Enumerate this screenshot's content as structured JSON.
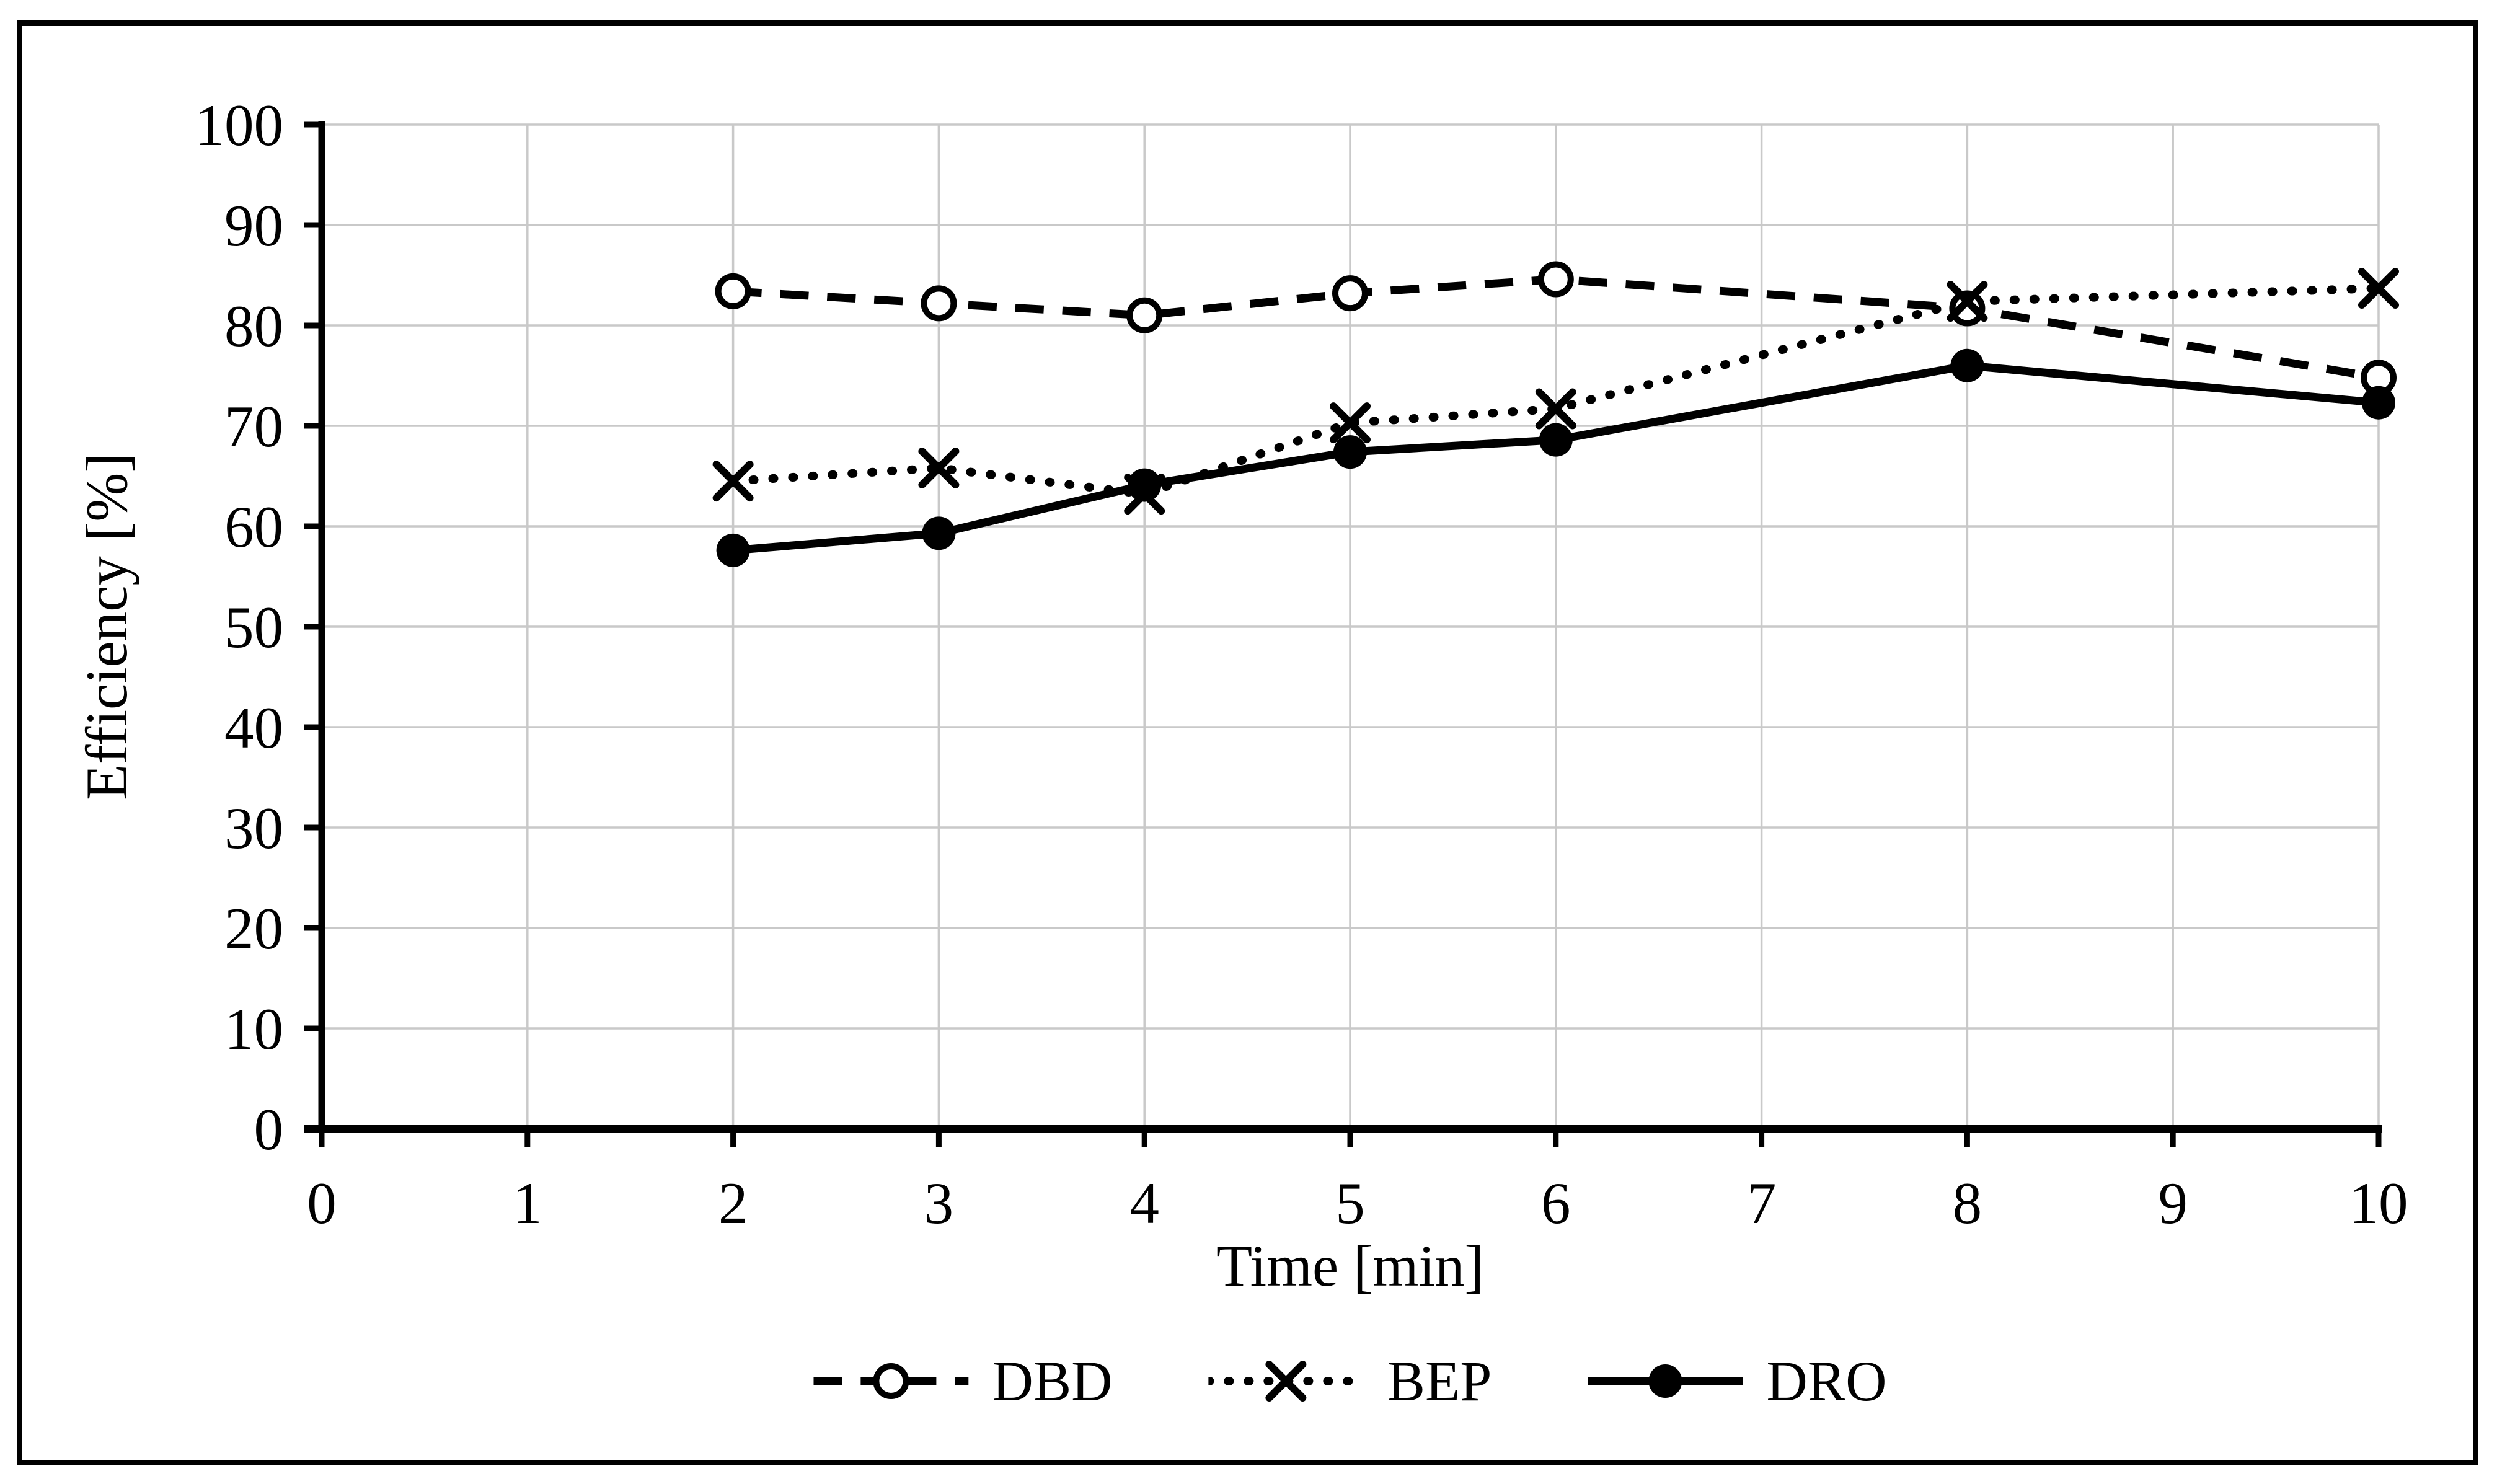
{
  "figure": {
    "background": "#ffffff",
    "border_color": "#000000"
  },
  "chart_data": {
    "type": "line",
    "title": "",
    "xlabel": "Time [min]",
    "ylabel": "Efficiency [%]",
    "xlim": [
      0,
      10
    ],
    "ylim": [
      0,
      100
    ],
    "x_tick_labels": [
      "0",
      "1",
      "2",
      "3",
      "4",
      "5",
      "6",
      "7",
      "8",
      "9",
      "10"
    ],
    "y_tick_labels": [
      "0",
      "10",
      "20",
      "30",
      "40",
      "50",
      "60",
      "70",
      "80",
      "90",
      "100"
    ],
    "grid": true,
    "legend_position": "bottom",
    "x": [
      2,
      3,
      4,
      5,
      6,
      8,
      10
    ],
    "series": [
      {
        "name": "DBD",
        "line_style": "dashed",
        "marker": "open-circle",
        "values": [
          83.4,
          82.2,
          81.0,
          83.2,
          84.6,
          81.7,
          74.8
        ]
      },
      {
        "name": "BEP",
        "line_style": "dotted",
        "marker": "x",
        "values": [
          64.5,
          65.8,
          63.2,
          70.3,
          71.7,
          82.4,
          83.7
        ]
      },
      {
        "name": "DRO",
        "line_style": "solid",
        "marker": "filled-circle",
        "values": [
          57.6,
          59.3,
          64.1,
          67.4,
          68.6,
          76.0,
          72.3
        ]
      }
    ],
    "colors": {
      "series": "#000000",
      "gridline": "#c9c9c9",
      "axis": "#000000",
      "text": "#000000"
    }
  }
}
